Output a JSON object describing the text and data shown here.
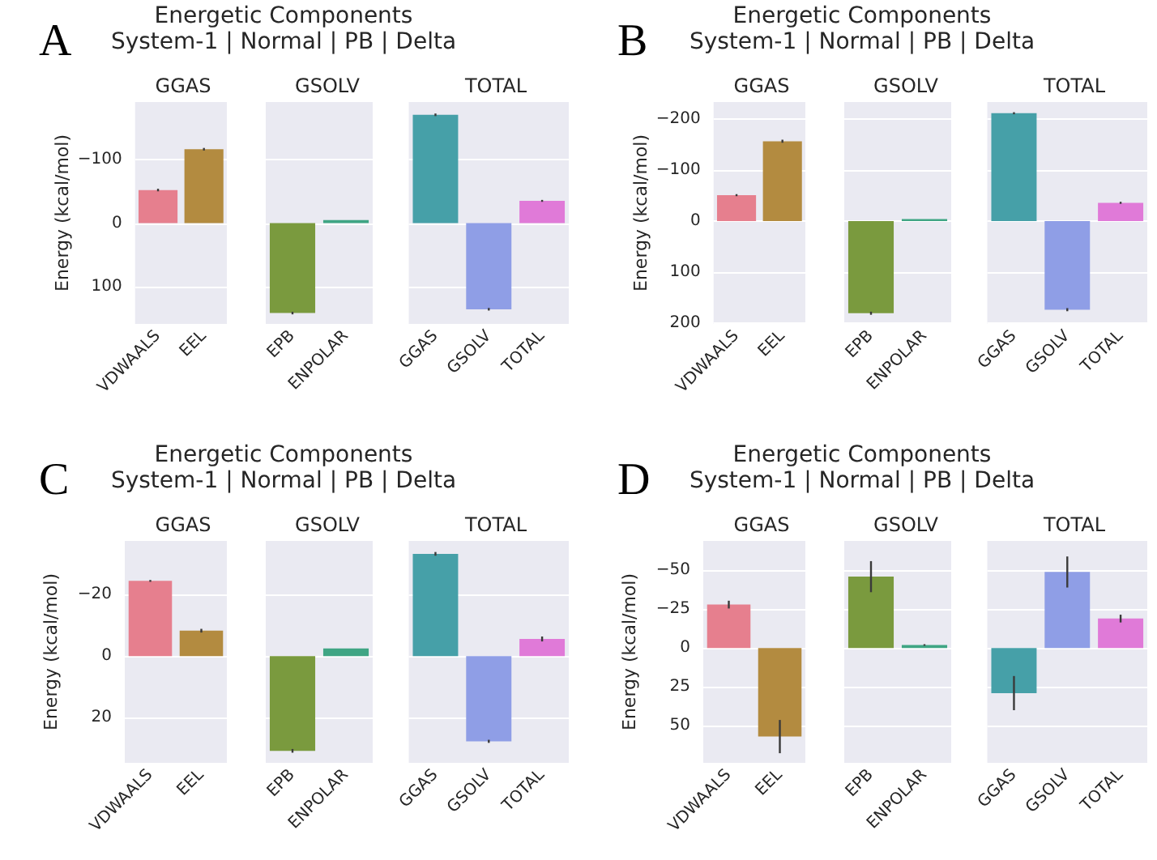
{
  "chart_data": [
    {
      "type": "bar",
      "title": "GGAS",
      "annotations": [
        "A",
        "Energetic Components",
        "System-1 | Normal | PB | Delta"
      ],
      "ylabel": "Energy (kcal/mol)",
      "categories": [
        "VDWAALS",
        "EEL"
      ],
      "values": [
        -52,
        -116
      ],
      "errors": [
        2,
        2
      ],
      "colors": [
        "#e67f8e",
        "#b38b40"
      ],
      "ylim": [
        158,
        -190
      ],
      "yticks": [
        -100,
        0,
        100
      ],
      "grid": "y"
    },
    {
      "type": "bar",
      "title": "GSOLV",
      "categories": [
        "EPB",
        "ENPOLAR"
      ],
      "values": [
        141,
        -5
      ],
      "errors": [
        2,
        null
      ],
      "colors": [
        "#7a9a3e",
        "#3fa584"
      ],
      "ylim": [
        158,
        -190
      ],
      "yticks": [
        -100,
        0,
        100
      ],
      "grid": "y",
      "tick_labels": "x"
    },
    {
      "type": "bar",
      "title": "TOTAL",
      "categories": [
        "GGAS",
        "GSOLV",
        "TOTAL"
      ],
      "values": [
        -170,
        135,
        -35
      ],
      "errors": [
        2,
        2,
        1.5
      ],
      "colors": [
        "#46a0a8",
        "#8f9ee6",
        "#e07ad8"
      ],
      "ylim": [
        158,
        -190
      ],
      "yticks": [
        -100,
        0,
        100
      ],
      "grid": "y",
      "tick_labels": "x"
    },
    {
      "type": "bar",
      "title": "GGAS",
      "annotations": [
        "B",
        "Energetic Components",
        "System-1 | Normal | PB | Delta"
      ],
      "ylabel": "Energy (kcal/mol)",
      "categories": [
        "VDWAALS",
        "EEL"
      ],
      "values": [
        -51,
        -157
      ],
      "errors": [
        2,
        3
      ],
      "colors": [
        "#e67f8e",
        "#b38b40"
      ],
      "ylim": [
        202,
        -234
      ],
      "yticks": [
        -200,
        -100,
        0,
        100,
        200
      ],
      "grid": "y"
    },
    {
      "type": "bar",
      "title": "GSOLV",
      "categories": [
        "EPB",
        "ENPOLAR"
      ],
      "values": [
        181,
        -4
      ],
      "errors": [
        3,
        null
      ],
      "colors": [
        "#7a9a3e",
        "#3fa584"
      ],
      "ylim": [
        202,
        -234
      ],
      "yticks": [
        -200,
        -100,
        0,
        100,
        200
      ],
      "grid": "y",
      "tick_labels": "x"
    },
    {
      "type": "bar",
      "title": "TOTAL",
      "categories": [
        "GGAS",
        "GSOLV",
        "TOTAL"
      ],
      "values": [
        -212,
        174,
        -36
      ],
      "errors": [
        2,
        3,
        2
      ],
      "colors": [
        "#46a0a8",
        "#8f9ee6",
        "#e07ad8"
      ],
      "ylim": [
        202,
        -234
      ],
      "yticks": [
        -200,
        -100,
        0,
        100,
        200
      ],
      "grid": "y",
      "tick_labels": "x"
    },
    {
      "type": "bar",
      "title": "GGAS",
      "annotations": [
        "C",
        "Energetic Components",
        "System-1 | Normal | PB | Delta"
      ],
      "ylabel": "Energy (kcal/mol)",
      "categories": [
        "VDWAALS",
        "EEL"
      ],
      "values": [
        -24.5,
        -8.3
      ],
      "errors": [
        0.3,
        0.6
      ],
      "colors": [
        "#e67f8e",
        "#b38b40"
      ],
      "ylim": [
        34.7,
        -37.5
      ],
      "yticks": [
        -20,
        0,
        20
      ],
      "grid": "y"
    },
    {
      "type": "bar",
      "title": "GSOLV",
      "categories": [
        "EPB",
        "ENPOLAR"
      ],
      "values": [
        30.8,
        -2.5
      ],
      "errors": [
        0.6,
        null
      ],
      "colors": [
        "#7a9a3e",
        "#3fa584"
      ],
      "ylim": [
        34.7,
        -37.5
      ],
      "yticks": [
        -20,
        0,
        20
      ],
      "grid": "y",
      "tick_labels": "x"
    },
    {
      "type": "bar",
      "title": "TOTAL",
      "categories": [
        "GGAS",
        "GSOLV",
        "TOTAL"
      ],
      "values": [
        -33.3,
        27.7,
        -5.6
      ],
      "errors": [
        0.6,
        0.5,
        0.8
      ],
      "colors": [
        "#46a0a8",
        "#8f9ee6",
        "#e07ad8"
      ],
      "ylim": [
        34.7,
        -37.5
      ],
      "yticks": [
        -20,
        0,
        20
      ],
      "grid": "y",
      "tick_labels": "x"
    },
    {
      "type": "bar",
      "title": "GGAS",
      "annotations": [
        "D",
        "Energetic Components",
        "System-1 | Normal | PB | Delta"
      ],
      "ylabel": "Energy (kcal/mol)",
      "categories": [
        "VDWAALS",
        "EEL"
      ],
      "values": [
        -28,
        57
      ],
      "errors": [
        2.5,
        10.7
      ],
      "colors": [
        "#e67f8e",
        "#b38b40"
      ],
      "ylim": [
        73.9,
        -69
      ],
      "yticks": [
        -50,
        -25,
        0,
        25,
        50
      ],
      "grid": "y"
    },
    {
      "type": "bar",
      "title": "GSOLV",
      "categories": [
        "EPB",
        "ENPOLAR"
      ],
      "values": [
        -46,
        -2
      ],
      "errors": [
        10,
        0.5
      ],
      "colors": [
        "#7a9a3e",
        "#3fa584"
      ],
      "ylim": [
        73.9,
        -69
      ],
      "yticks": [
        -50,
        -25,
        0,
        25,
        50
      ],
      "grid": "y",
      "tick_labels": "x"
    },
    {
      "type": "bar",
      "title": "TOTAL",
      "categories": [
        "GGAS",
        "GSOLV",
        "TOTAL"
      ],
      "values": [
        29,
        -49,
        -19
      ],
      "errors": [
        11,
        10,
        2.5
      ],
      "colors": [
        "#46a0a8",
        "#8f9ee6",
        "#e07ad8"
      ],
      "ylim": [
        73.9,
        -69
      ],
      "yticks": [
        -50,
        -25,
        0,
        25,
        50
      ],
      "grid": "y",
      "tick_labels": "x"
    }
  ]
}
